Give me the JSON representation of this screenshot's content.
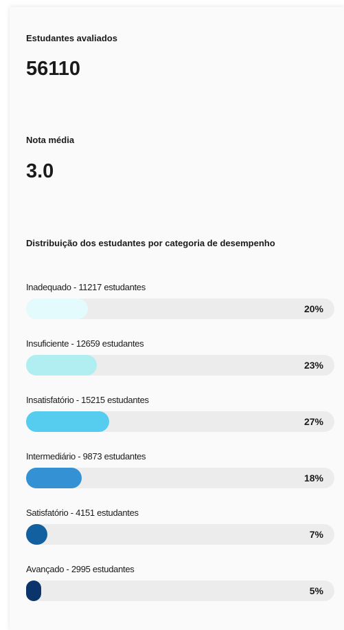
{
  "metrics": [
    {
      "label": "Estudantes avaliados",
      "value": 56110
    },
    {
      "label": "Nota média",
      "value": "3.0"
    }
  ],
  "distribution": {
    "title": "Distribuição dos estudantes por categoria de desempenho",
    "xlim": [
      0,
      100
    ],
    "items": [
      {
        "label": "Inadequado - 11217 estudantes",
        "value": 20,
        "value_label": "20%",
        "color": "#e3fbfd"
      },
      {
        "label": "Insuficiente - 12659 estudantes",
        "value": 23,
        "value_label": "23%",
        "color": "#b0eef1"
      },
      {
        "label": "Insatisfatório - 15215 estudantes",
        "value": 27,
        "value_label": "27%",
        "color": "#56ccef"
      },
      {
        "label": "Intermediário - 9873 estudantes",
        "value": 18,
        "value_label": "18%",
        "color": "#3391d4"
      },
      {
        "label": "Satisfatório - 4151 estudantes",
        "value": 7,
        "value_label": "7%",
        "color": "#12609f"
      },
      {
        "label": "Avançado - 2995 estudantes",
        "value": 5,
        "value_label": "5%",
        "color": "#0b346a"
      }
    ]
  }
}
